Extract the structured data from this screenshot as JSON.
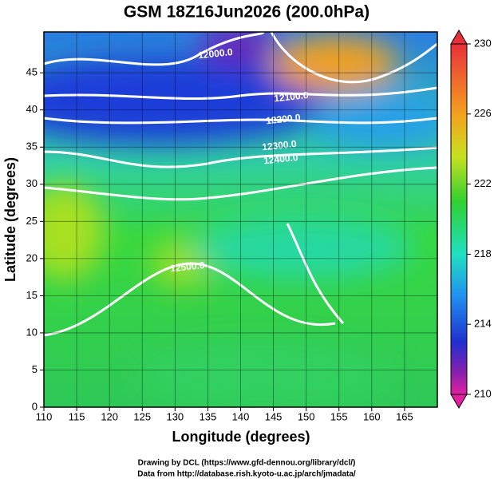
{
  "title": "GSM 18Z16Jun2026 (200.0hPa)",
  "x_axis": {
    "label": "Longitude (degrees)",
    "lim": [
      110,
      170
    ],
    "ticks": [
      110,
      115,
      120,
      125,
      130,
      135,
      140,
      145,
      150,
      155,
      160,
      165
    ]
  },
  "y_axis": {
    "label": "Latitude  (degrees)",
    "lim": [
      0,
      50.5
    ],
    "ticks": [
      0,
      5,
      10,
      15,
      20,
      25,
      30,
      35,
      40,
      45
    ]
  },
  "colorbar": {
    "lim": [
      210,
      230
    ],
    "ticks": [
      210,
      214,
      218,
      222,
      226,
      230
    ]
  },
  "contour_labels": [
    "12000.0",
    "12100.0",
    "12200.0",
    "12300.0",
    "12400.0",
    "12500.0"
  ],
  "credits": [
    "Drawing by DCL (https://www.gfd-dennou.org/library/dcl/)",
    "Data from http://database.rish.kyoto-u.ac.jp/arch/jmadata/"
  ]
}
